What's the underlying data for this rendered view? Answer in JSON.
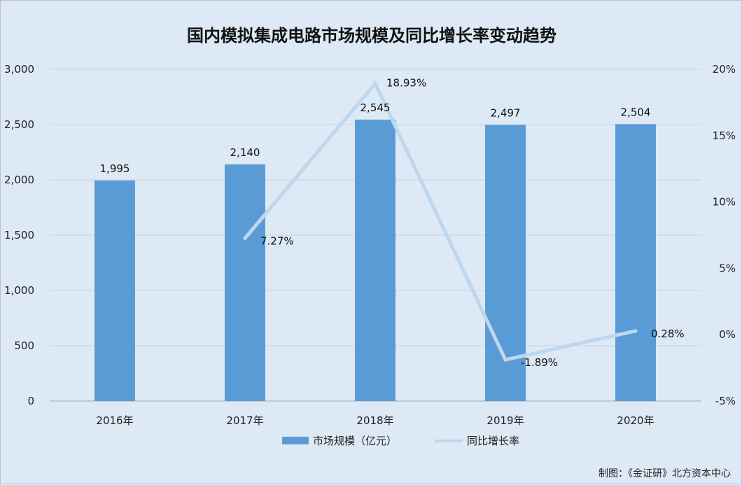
{
  "chart_data": {
    "type": "bar",
    "title": "国内模拟集成电路市场规模及同比增长率变动趋势",
    "categories": [
      "2016年",
      "2017年",
      "2018年",
      "2019年",
      "2020年"
    ],
    "series": [
      {
        "name": "市场规模（亿元）",
        "type": "bar",
        "axis": "left",
        "color": "#5b9bd5",
        "values": [
          1995,
          2140,
          2545,
          2497,
          2504
        ],
        "labels": [
          "1,995",
          "2,140",
          "2,545",
          "2,497",
          "2,504"
        ]
      },
      {
        "name": "同比增长率",
        "type": "line",
        "axis": "right",
        "color": "#bdd7ee",
        "values": [
          null,
          7.27,
          18.93,
          -1.89,
          0.28
        ],
        "labels": [
          "",
          "7.27%",
          "18.93%",
          "-1.89%",
          "0.28%"
        ]
      }
    ],
    "y_left": {
      "min": 0,
      "max": 3000,
      "step": 500,
      "tick_labels": [
        "0",
        "500",
        "1,000",
        "1,500",
        "2,000",
        "2,500",
        "3,000"
      ]
    },
    "y_right": {
      "min": -5,
      "max": 20,
      "step": 5,
      "tick_labels": [
        "-5%",
        "0%",
        "5%",
        "10%",
        "15%",
        "20%"
      ]
    },
    "grid": true,
    "legend_position": "bottom"
  },
  "footer": {
    "credit": "制图：《金证研》北方资本中心"
  }
}
